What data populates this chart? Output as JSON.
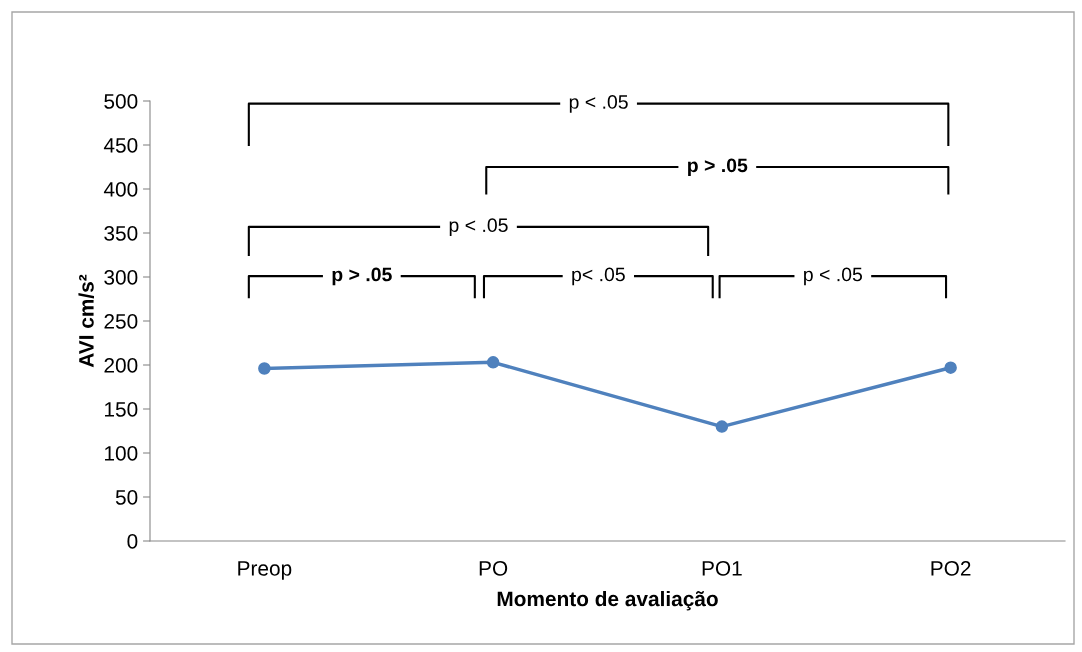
{
  "chart_data": {
    "type": "line",
    "xlabel": "Momento de avaliação",
    "ylabel": "AVI cm/s²",
    "categories": [
      "Preop",
      "PO",
      "PO1",
      "PO2"
    ],
    "series": [
      {
        "color": "#4f81bd",
        "values": [
          196,
          203,
          130,
          197
        ]
      }
    ],
    "ylim": [
      0,
      500
    ],
    "yticks": [
      0,
      50,
      100,
      150,
      200,
      250,
      300,
      350,
      400,
      450,
      500
    ],
    "grid": false,
    "legend": false,
    "marker": "circle",
    "line_style": "solid",
    "annotations": [
      "p < .05",
      "p > .05",
      "p < .05",
      "p > .05",
      "p< .05",
      "p < .05"
    ]
  }
}
